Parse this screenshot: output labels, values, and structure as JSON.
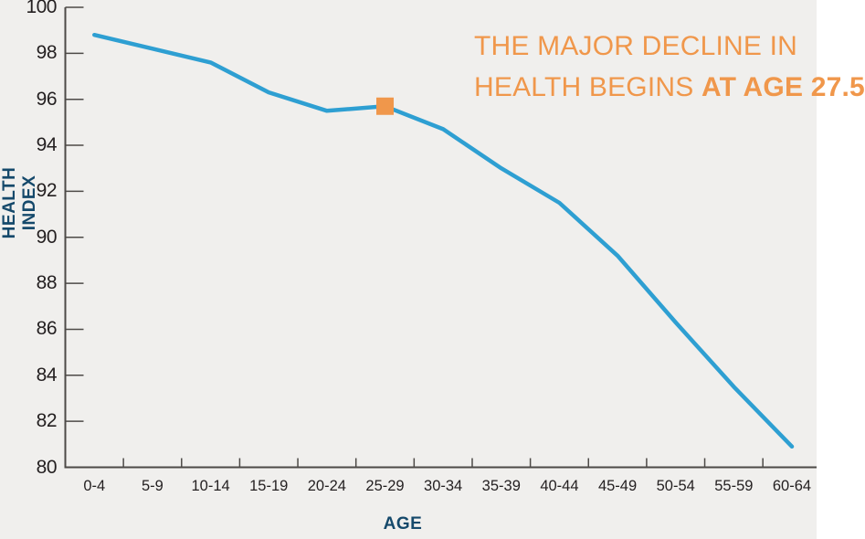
{
  "annotation": {
    "line1": "THE MAJOR DECLINE IN",
    "line2_normal": "HEALTH BEGINS ",
    "line2_bold": "AT AGE 27.5"
  },
  "colors": {
    "background": "#f0efed",
    "line": "#2e9fd2",
    "marker": "#f0974b",
    "annotation_text": "#f0974b",
    "axis": "#4d4a47",
    "tick_label": "#231f20",
    "axis_title": "#15496b"
  },
  "chart_data": {
    "type": "line",
    "title": "",
    "xlabel": "AGE",
    "ylabel": "HEALTH INDEX",
    "categories": [
      "0-4",
      "5-9",
      "10-14",
      "15-19",
      "20-24",
      "25-29",
      "30-34",
      "35-39",
      "40-44",
      "45-49",
      "50-54",
      "55-59",
      "60-64"
    ],
    "series": [
      {
        "name": "Health Index",
        "values": [
          98.8,
          98.2,
          97.6,
          96.3,
          95.5,
          95.7,
          94.7,
          93.0,
          91.5,
          89.2,
          86.3,
          83.5,
          80.9
        ]
      }
    ],
    "ylim": [
      80,
      100
    ],
    "y_ticks": [
      100,
      98,
      96,
      94,
      92,
      90,
      88,
      86,
      84,
      82,
      80
    ],
    "grid": false,
    "legend": false,
    "marker": {
      "category": "25-29",
      "value": 95.7,
      "shape": "square"
    }
  }
}
